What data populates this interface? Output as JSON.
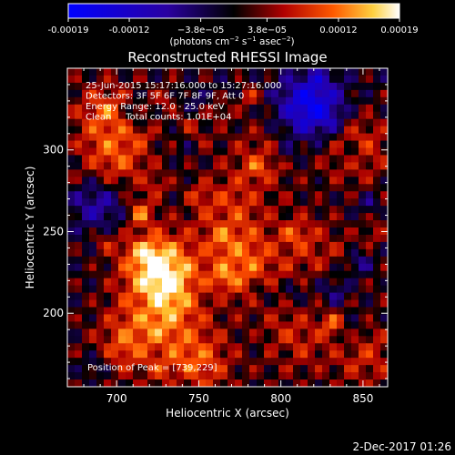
{
  "colorbar": {
    "ticks": [
      "-0.00019",
      "-0.00012",
      "−3.8e−05",
      "3.8e−05",
      "0.00012",
      "0.00019"
    ],
    "tick_values": [
      -0.00019,
      -0.00012,
      -3.8e-05,
      3.8e-05,
      0.00012,
      0.00019
    ],
    "range": [
      -0.00019,
      0.00019
    ],
    "units_main": "(photons cm",
    "units_sup1": "−2",
    "units_mid1": " s",
    "units_sup2": "−1",
    "units_mid2": " asec",
    "units_sup3": "−2",
    "units_end": ")"
  },
  "chart_data": {
    "type": "heatmap",
    "title": "Reconstructed RHESSI Image",
    "xlabel": "Heliocentric X (arcsec)",
    "ylabel": "Heliocentric Y (arcsec)",
    "xlim": [
      670,
      865
    ],
    "ylim": [
      155,
      350
    ],
    "x_ticks": [
      700,
      750,
      800,
      850
    ],
    "y_ticks": [
      200,
      250,
      300
    ],
    "x_tick_labels": [
      "700",
      "750",
      "800",
      "850"
    ],
    "y_tick_labels": [
      "200",
      "250",
      "300"
    ],
    "colormap": "blue-black-red-yellow-white",
    "peak_position": [
      739,
      229
    ],
    "info_lines": [
      "25-Jun-2015 15:17:16.000 to 15:27:16.000",
      "Detectors: 3F 5F 6F 7F 8F 9F, Att 0",
      "Energy Range: 12.0 - 25.0 keV",
      "Clean     Total counts: 1.01E+04"
    ],
    "peak_text": "Position of Peak = [739,229]"
  },
  "footer": {
    "date": "2-Dec-2017 01:26"
  }
}
